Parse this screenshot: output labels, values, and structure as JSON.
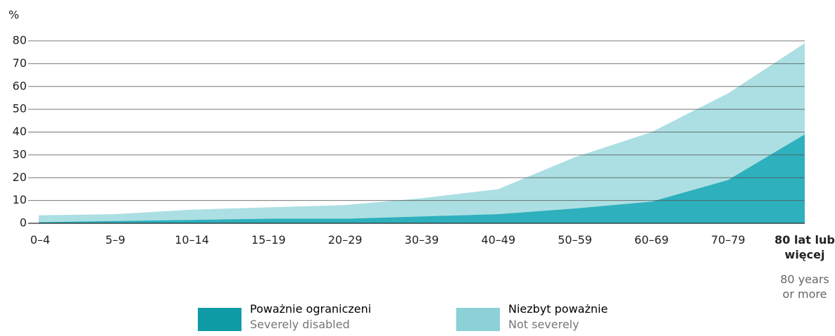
{
  "chart_data": {
    "type": "stacked_area",
    "y_label": "%",
    "categories": [
      "0–4",
      "5–9",
      "10–14",
      "15–19",
      "20–29",
      "30–39",
      "40–49",
      "50–59",
      "60–69",
      "70–79",
      "80 lat lub więcej"
    ],
    "last_category_note": "80 years or more",
    "series": [
      {
        "name": "Poważnie ograniczeni",
        "name_en": "Severely disabled",
        "color": "#2eb0bd",
        "legend_color": "#0f9ba6",
        "values": [
          0.5,
          1,
          1.5,
          2,
          2,
          3,
          4,
          6.5,
          9.5,
          19,
          39
        ]
      },
      {
        "name": "Niezbyt poważnie",
        "name_en": "Not severely",
        "color": "#acdfe3",
        "legend_color": "#8bd1d7",
        "values": [
          3,
          3,
          4.5,
          5,
          6,
          8,
          11,
          22.5,
          30.5,
          38,
          40
        ]
      }
    ],
    "ylim": [
      0,
      80
    ],
    "yticks": [
      0,
      10,
      20,
      30,
      40,
      50,
      60,
      70,
      80
    ],
    "grid": true
  }
}
